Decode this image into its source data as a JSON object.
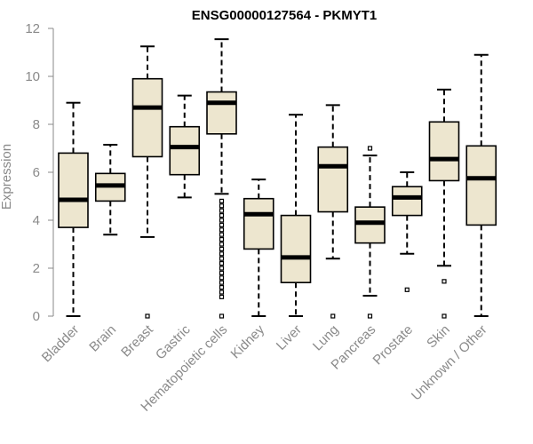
{
  "chart_data": {
    "type": "boxplot",
    "title": "ENSG00000127564 - PKMYT1",
    "ylabel": "Expression",
    "ylim": [
      0,
      12
    ],
    "yticks": [
      0,
      2,
      4,
      6,
      8,
      10,
      12
    ],
    "grid": false,
    "box_fill": "#ede6cf",
    "line_color": "#000000",
    "categories": [
      "Bladder",
      "Brain",
      "Breast",
      "Gastric",
      "Hematopoietic cells",
      "Kidney",
      "Liver",
      "Lung",
      "Pancreas",
      "Prostate",
      "Skin",
      "Unknown / Other"
    ],
    "boxes": [
      {
        "whisker_low": 0.0,
        "q1": 3.7,
        "median": 4.85,
        "q3": 6.8,
        "whisker_high": 8.9,
        "outliers": []
      },
      {
        "whisker_low": 3.4,
        "q1": 4.8,
        "median": 5.45,
        "q3": 5.95,
        "whisker_high": 7.15,
        "outliers": []
      },
      {
        "whisker_low": 3.3,
        "q1": 6.65,
        "median": 8.7,
        "q3": 9.9,
        "whisker_high": 11.25,
        "outliers": [
          0.0
        ]
      },
      {
        "whisker_low": 4.95,
        "q1": 5.9,
        "median": 7.05,
        "q3": 7.9,
        "whisker_high": 9.2,
        "outliers": []
      },
      {
        "whisker_low": 5.1,
        "q1": 7.6,
        "median": 8.9,
        "q3": 9.35,
        "whisker_high": 11.55,
        "outliers": [
          0.0,
          0.8,
          1.0,
          1.2,
          1.4,
          1.6,
          1.8,
          2.0,
          2.2,
          2.4,
          2.6,
          2.8,
          3.0,
          3.2,
          3.4,
          3.6,
          3.8,
          4.0,
          4.2,
          4.4,
          4.6,
          4.8
        ]
      },
      {
        "whisker_low": 0.0,
        "q1": 2.8,
        "median": 4.25,
        "q3": 4.9,
        "whisker_high": 5.7,
        "outliers": []
      },
      {
        "whisker_low": 0.0,
        "q1": 1.4,
        "median": 2.45,
        "q3": 4.2,
        "whisker_high": 8.4,
        "outliers": []
      },
      {
        "whisker_low": 2.4,
        "q1": 4.35,
        "median": 6.25,
        "q3": 7.05,
        "whisker_high": 8.8,
        "outliers": [
          0.0
        ]
      },
      {
        "whisker_low": 0.85,
        "q1": 3.05,
        "median": 3.9,
        "q3": 4.55,
        "whisker_high": 6.7,
        "outliers": [
          0.0,
          7.0
        ]
      },
      {
        "whisker_low": 2.6,
        "q1": 4.2,
        "median": 4.95,
        "q3": 5.4,
        "whisker_high": 6.0,
        "outliers": [
          1.1
        ]
      },
      {
        "whisker_low": 2.1,
        "q1": 5.65,
        "median": 6.55,
        "q3": 8.1,
        "whisker_high": 9.45,
        "outliers": [
          0.0,
          1.45
        ]
      },
      {
        "whisker_low": 0.0,
        "q1": 3.8,
        "median": 5.75,
        "q3": 7.1,
        "whisker_high": 10.9,
        "outliers": []
      }
    ]
  }
}
